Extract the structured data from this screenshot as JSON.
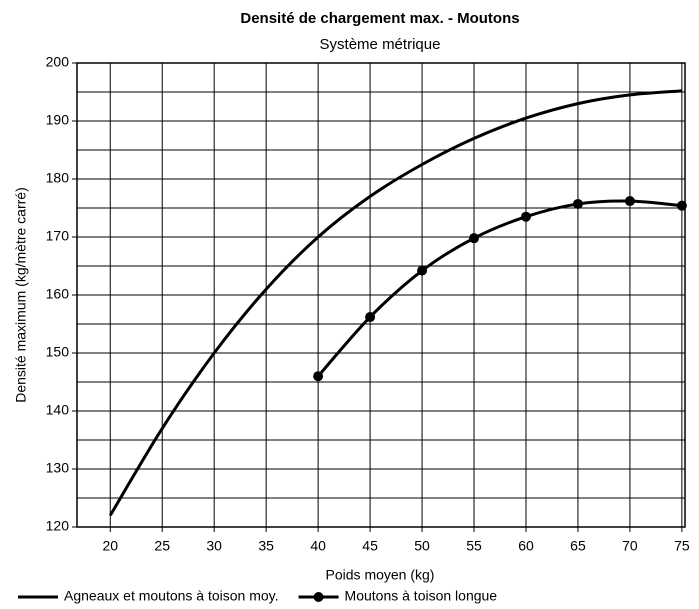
{
  "chart_data": {
    "type": "line",
    "title": "Densité de chargement max. - Moutons",
    "subtitle": "Système métrique",
    "x_label": "Poids moyen (kg)",
    "y_label": "Densité maximum (kg/mètre carré)",
    "x": [
      20,
      25,
      30,
      35,
      40,
      45,
      50,
      55,
      60,
      65,
      70,
      75
    ],
    "series": [
      {
        "name": "Agneaux et moutons à toison moy.",
        "color": "#000000",
        "marker": false,
        "values": [
          122,
          137,
          150,
          161,
          170,
          177,
          182.5,
          187,
          190.5,
          193,
          194.5,
          195.2
        ]
      },
      {
        "name": "Moutons à toison longue",
        "color": "#000000",
        "marker": true,
        "values": [
          null,
          null,
          null,
          null,
          146,
          156.2,
          164.2,
          169.8,
          173.5,
          175.7,
          176.2,
          175.4
        ]
      }
    ],
    "xlim": [
      16.8,
      75.3
    ],
    "xticks": [
      20,
      25,
      30,
      35,
      40,
      45,
      50,
      55,
      60,
      65,
      70,
      75
    ],
    "ylim": [
      120,
      200
    ],
    "yticks": [
      120,
      130,
      140,
      150,
      160,
      170,
      180,
      190,
      200
    ],
    "y_minor_ticks": [
      125,
      135,
      145,
      155,
      165,
      175,
      185,
      195
    ],
    "grid": true,
    "legend": "bottom"
  }
}
